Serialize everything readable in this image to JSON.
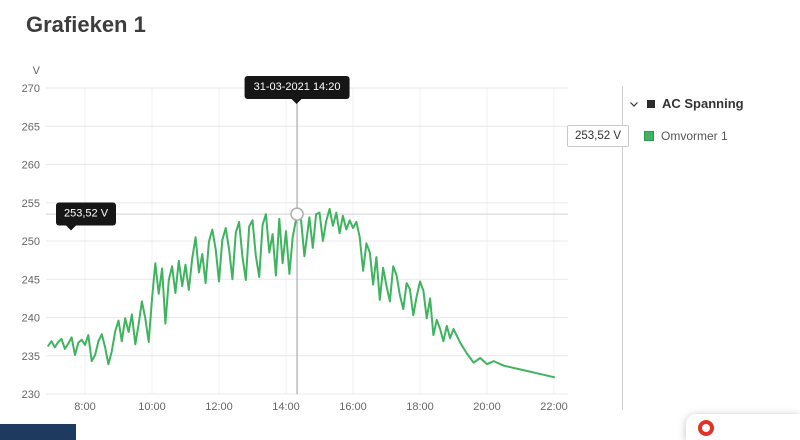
{
  "page": {
    "title": "Grafieken 1"
  },
  "colors": {
    "series_green": "#3fb35f",
    "tooltip_bg": "#161616",
    "footer_navy": "#1e3a5f",
    "help_red": "#e23227",
    "grid": "#e8e8e8"
  },
  "chart_data": {
    "type": "line",
    "title": "",
    "xlabel": "",
    "ylabel": "V",
    "ylim": [
      230,
      272
    ],
    "y_ticks": [
      270,
      265,
      260,
      255,
      250,
      245,
      240,
      235,
      230
    ],
    "x_ticks": [
      "8:00",
      "10:00",
      "12:00",
      "14:00",
      "16:00",
      "18:00",
      "20:00",
      "22:00"
    ],
    "x_tick_hours": [
      8,
      10,
      12,
      14,
      16,
      18,
      20,
      22
    ],
    "grid": "on",
    "legend_position": "right",
    "crosshair": {
      "hour": 14.33,
      "value": 253.52,
      "time_label": "31-03-2021 14:20",
      "value_label": "253,52 V"
    },
    "series": [
      {
        "name": "Omvormer 1",
        "color": "#3fb35f",
        "points": [
          [
            6.9,
            236.3
          ],
          [
            7.0,
            236.9
          ],
          [
            7.1,
            236.1
          ],
          [
            7.2,
            236.8
          ],
          [
            7.3,
            237.2
          ],
          [
            7.4,
            235.9
          ],
          [
            7.5,
            236.6
          ],
          [
            7.6,
            237.4
          ],
          [
            7.7,
            235.1
          ],
          [
            7.8,
            236.7
          ],
          [
            7.9,
            237.1
          ],
          [
            8.0,
            236.4
          ],
          [
            8.1,
            237.7
          ],
          [
            8.2,
            234.3
          ],
          [
            8.3,
            235.1
          ],
          [
            8.4,
            236.9
          ],
          [
            8.5,
            237.8
          ],
          [
            8.6,
            236.1
          ],
          [
            8.7,
            233.9
          ],
          [
            8.8,
            235.6
          ],
          [
            8.9,
            238.2
          ],
          [
            9.0,
            239.6
          ],
          [
            9.1,
            236.9
          ],
          [
            9.2,
            239.9
          ],
          [
            9.3,
            238.1
          ],
          [
            9.4,
            240.4
          ],
          [
            9.5,
            236.5
          ],
          [
            9.6,
            239.1
          ],
          [
            9.7,
            242.1
          ],
          [
            9.8,
            239.9
          ],
          [
            9.9,
            236.8
          ],
          [
            10.0,
            242.4
          ],
          [
            10.1,
            247.1
          ],
          [
            10.2,
            243.1
          ],
          [
            10.3,
            246.4
          ],
          [
            10.4,
            239.2
          ],
          [
            10.5,
            244.9
          ],
          [
            10.6,
            246.7
          ],
          [
            10.7,
            243.2
          ],
          [
            10.8,
            247.4
          ],
          [
            10.9,
            244.1
          ],
          [
            11.0,
            246.9
          ],
          [
            11.1,
            243.6
          ],
          [
            11.2,
            247.7
          ],
          [
            11.3,
            250.5
          ],
          [
            11.4,
            245.9
          ],
          [
            11.5,
            248.3
          ],
          [
            11.6,
            244.5
          ],
          [
            11.7,
            249.9
          ],
          [
            11.8,
            251.5
          ],
          [
            11.9,
            248.9
          ],
          [
            12.0,
            244.7
          ],
          [
            12.1,
            250.1
          ],
          [
            12.2,
            251.7
          ],
          [
            12.3,
            248.9
          ],
          [
            12.4,
            245.0
          ],
          [
            12.5,
            251.1
          ],
          [
            12.6,
            252.5
          ],
          [
            12.7,
            248.0
          ],
          [
            12.8,
            244.9
          ],
          [
            12.9,
            251.9
          ],
          [
            13.0,
            252.7
          ],
          [
            13.1,
            248.1
          ],
          [
            13.2,
            245.3
          ],
          [
            13.3,
            252.1
          ],
          [
            13.4,
            253.5
          ],
          [
            13.5,
            248.5
          ],
          [
            13.6,
            250.9
          ],
          [
            13.7,
            245.5
          ],
          [
            13.8,
            252.9
          ],
          [
            13.9,
            247.1
          ],
          [
            14.0,
            251.3
          ],
          [
            14.1,
            245.7
          ],
          [
            14.2,
            250.5
          ],
          [
            14.33,
            253.52
          ],
          [
            14.45,
            252.7
          ],
          [
            14.55,
            248.0
          ],
          [
            14.7,
            253.1
          ],
          [
            14.8,
            249.1
          ],
          [
            14.9,
            253.5
          ],
          [
            15.0,
            253.7
          ],
          [
            15.1,
            250.0
          ],
          [
            15.2,
            252.6
          ],
          [
            15.3,
            254.2
          ],
          [
            15.4,
            252.0
          ],
          [
            15.5,
            253.7
          ],
          [
            15.6,
            251.0
          ],
          [
            15.7,
            253.3
          ],
          [
            15.8,
            251.5
          ],
          [
            15.9,
            252.7
          ],
          [
            16.0,
            251.7
          ],
          [
            16.1,
            252.5
          ],
          [
            16.2,
            250.5
          ],
          [
            16.3,
            246.1
          ],
          [
            16.4,
            249.7
          ],
          [
            16.5,
            248.5
          ],
          [
            16.6,
            244.3
          ],
          [
            16.7,
            247.9
          ],
          [
            16.8,
            242.3
          ],
          [
            16.9,
            246.5
          ],
          [
            17.0,
            244.1
          ],
          [
            17.1,
            242.1
          ],
          [
            17.2,
            246.7
          ],
          [
            17.3,
            245.5
          ],
          [
            17.4,
            242.9
          ],
          [
            17.5,
            241.1
          ],
          [
            17.6,
            244.5
          ],
          [
            17.7,
            243.7
          ],
          [
            17.8,
            240.3
          ],
          [
            17.9,
            242.7
          ],
          [
            18.0,
            244.7
          ],
          [
            18.1,
            243.5
          ],
          [
            18.2,
            239.9
          ],
          [
            18.3,
            242.5
          ],
          [
            18.4,
            237.7
          ],
          [
            18.5,
            239.7
          ],
          [
            18.6,
            238.5
          ],
          [
            18.7,
            236.9
          ],
          [
            18.8,
            238.9
          ],
          [
            18.9,
            237.3
          ],
          [
            19.0,
            238.5
          ],
          [
            19.2,
            236.7
          ],
          [
            19.4,
            235.3
          ],
          [
            19.6,
            234.1
          ],
          [
            19.8,
            234.7
          ],
          [
            20.0,
            233.9
          ],
          [
            20.2,
            234.3
          ],
          [
            20.5,
            233.7
          ],
          [
            21.0,
            233.2
          ],
          [
            21.5,
            232.7
          ],
          [
            22.0,
            232.2
          ]
        ]
      }
    ]
  },
  "legend": {
    "group_label": "AC Spanning",
    "value_box": "253,52 V",
    "series_label": "Omvormer 1",
    "series_color": "#3fb35f",
    "icons": {
      "chevron": "chevron-down-icon",
      "group_marker": "series-marker-square",
      "help": "help-widget-icon"
    }
  }
}
